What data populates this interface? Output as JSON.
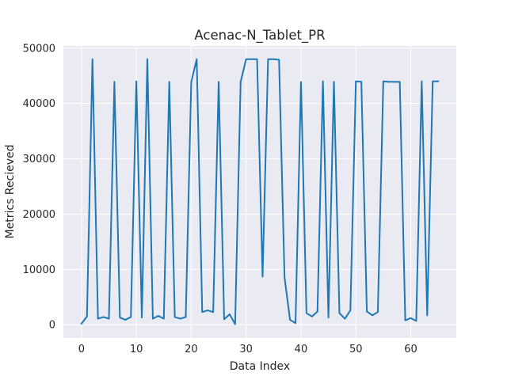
{
  "chart_data": {
    "type": "line",
    "title": "Acenac-N_Tablet_PR",
    "xlabel": "Data Index",
    "ylabel": "Metrics Recieved",
    "xlim": [
      -3.3,
      68.3
    ],
    "ylim": [
      -2400,
      50400
    ],
    "x_ticks": [
      0,
      10,
      20,
      30,
      40,
      50,
      60
    ],
    "y_ticks": [
      0,
      10000,
      20000,
      30000,
      40000,
      50000
    ],
    "grid": true,
    "series": [
      {
        "color": "#1f77b4",
        "x": [
          0,
          1,
          2,
          3,
          4,
          5,
          6,
          7,
          8,
          9,
          10,
          11,
          12,
          13,
          14,
          15,
          16,
          17,
          18,
          19,
          20,
          21,
          22,
          23,
          24,
          25,
          26,
          27,
          28,
          29,
          30,
          31,
          32,
          33,
          34,
          35,
          36,
          37,
          38,
          39,
          40,
          41,
          42,
          43,
          44,
          45,
          46,
          47,
          48,
          49,
          50,
          51,
          52,
          53,
          54,
          55,
          56,
          57,
          58,
          59,
          60,
          61,
          62,
          63,
          64,
          65
        ],
        "values": [
          200,
          1500,
          48000,
          1100,
          1400,
          1100,
          43900,
          1300,
          900,
          1400,
          44000,
          1300,
          48000,
          1100,
          1600,
          1100,
          43900,
          1400,
          1100,
          1400,
          43900,
          48000,
          2300,
          2600,
          2300,
          43900,
          1000,
          1900,
          100,
          43900,
          48000,
          48000,
          48000,
          8700,
          48000,
          48000,
          47900,
          8600,
          900,
          300,
          43900,
          2100,
          1500,
          2400,
          44000,
          1300,
          43900,
          2100,
          1100,
          2600,
          44000,
          43900,
          2400,
          1700,
          2300,
          44000,
          43900,
          43900,
          43900,
          800,
          1200,
          700,
          44000,
          1700,
          44000,
          44000
        ]
      }
    ]
  }
}
